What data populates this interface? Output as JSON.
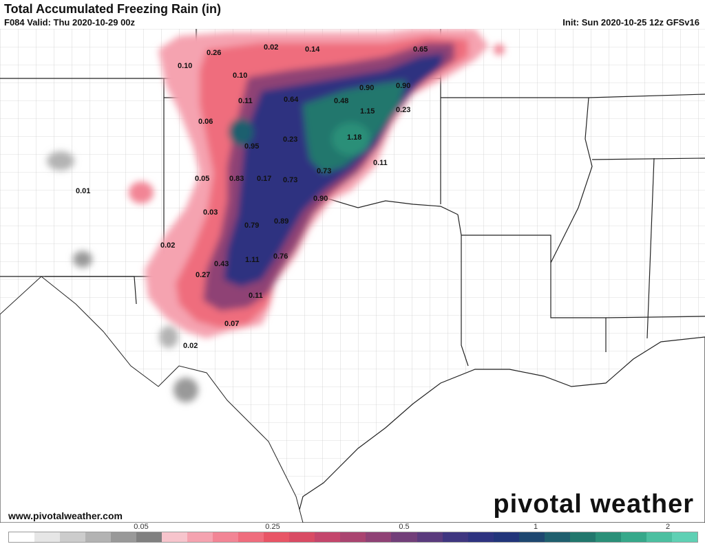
{
  "header": {
    "title": "Total Accumulated Freezing Rain (in)",
    "valid": "F084 Valid: Thu 2020-10-29 00z",
    "init": "Init: Sun 2020-10-25 12z GFSv16"
  },
  "footer": {
    "website": "www.pivotalweather.com",
    "brand": "pivotal weather"
  },
  "colorbar": {
    "labels": [
      "0.05",
      "0.25",
      "0.5",
      "1",
      "2"
    ],
    "colors": [
      "#ffffff",
      "#e6e6e6",
      "#cccccc",
      "#b3b3b3",
      "#999999",
      "#808080",
      "#f7c4cc",
      "#f5a3b0",
      "#f28595",
      "#ef6d7d",
      "#e85566",
      "#d94b64",
      "#c4466c",
      "#aa4470",
      "#8f4275",
      "#723f79",
      "#5a3b7d",
      "#3f3680",
      "#2e3380",
      "#22357a",
      "#1e4770",
      "#1f5f6e",
      "#22776d",
      "#2a8f78",
      "#36a88a",
      "#4cbfa0",
      "#5fd0b4"
    ]
  },
  "map_data": {
    "values": [
      {
        "label": "0.26"
      },
      {
        "label": "0.02"
      },
      {
        "label": "0.14"
      },
      {
        "label": "0.65"
      },
      {
        "label": "0.10"
      },
      {
        "label": "0.10"
      },
      {
        "label": "0.90"
      },
      {
        "label": "0.90"
      },
      {
        "label": "0.11"
      },
      {
        "label": "0.64"
      },
      {
        "label": "0.48"
      },
      {
        "label": "1.15"
      },
      {
        "label": "0.23"
      },
      {
        "label": "0.06"
      },
      {
        "label": "0.95"
      },
      {
        "label": "0.23"
      },
      {
        "label": "1.18"
      },
      {
        "label": "0.11"
      },
      {
        "label": "0.73"
      },
      {
        "label": "0.05"
      },
      {
        "label": "0.83"
      },
      {
        "label": "0.17"
      },
      {
        "label": "0.73"
      },
      {
        "label": "0.01"
      },
      {
        "label": "0.90"
      },
      {
        "label": "0.03"
      },
      {
        "label": "0.79"
      },
      {
        "label": "0.89"
      },
      {
        "label": "0.02"
      },
      {
        "label": "1.11"
      },
      {
        "label": "0.76"
      },
      {
        "label": "0.43"
      },
      {
        "label": "0.27"
      },
      {
        "label": "0.11"
      },
      {
        "label": "0.07"
      },
      {
        "label": "0.02"
      }
    ]
  }
}
